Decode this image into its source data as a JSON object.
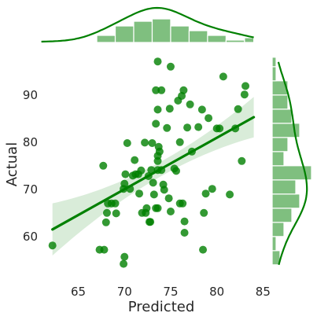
{
  "chart_data": {
    "type": "scatter",
    "title": "",
    "xlabel": "Predicted",
    "ylabel": "Actual",
    "xlim": [
      61.8,
      84.8
    ],
    "ylim": [
      51.8,
      98.8
    ],
    "xticks": [
      65,
      70,
      75,
      80,
      85
    ],
    "yticks": [
      60,
      70,
      80,
      90
    ],
    "grid": false,
    "color": "#008000",
    "points": [
      [
        62.2,
        58.1
      ],
      [
        67.3,
        57.2
      ],
      [
        67.8,
        57.2
      ],
      [
        69.9,
        54.2
      ],
      [
        70.0,
        55.7
      ],
      [
        68.0,
        63.0
      ],
      [
        68.1,
        65.0
      ],
      [
        68.2,
        67.0
      ],
      [
        68.6,
        67.0
      ],
      [
        69.0,
        67.0
      ],
      [
        69.1,
        64.9
      ],
      [
        67.7,
        75.0
      ],
      [
        69.9,
        70.1
      ],
      [
        70.0,
        71.2
      ],
      [
        70.1,
        73.2
      ],
      [
        70.3,
        79.8
      ],
      [
        70.6,
        70.1
      ],
      [
        70.9,
        72.9
      ],
      [
        71.1,
        76.2
      ],
      [
        71.2,
        73.2
      ],
      [
        71.5,
        73.2
      ],
      [
        71.6,
        69.1
      ],
      [
        71.8,
        74.0
      ],
      [
        71.9,
        65.0
      ],
      [
        72.3,
        65.0
      ],
      [
        72.4,
        66.0
      ],
      [
        72.7,
        63.1
      ],
      [
        72.6,
        72.8
      ],
      [
        72.8,
        63.1
      ],
      [
        72.9,
        74.1
      ],
      [
        72.2,
        79.9
      ],
      [
        73.0,
        79.8
      ],
      [
        73.1,
        71.4
      ],
      [
        73.2,
        68.9
      ],
      [
        73.4,
        66.0
      ],
      [
        73.6,
        66.0
      ],
      [
        73.6,
        74.1
      ],
      [
        73.6,
        76.0
      ],
      [
        73.6,
        77.1
      ],
      [
        73.7,
        79.0
      ],
      [
        73.8,
        78.0
      ],
      [
        73.4,
        83.9
      ],
      [
        73.6,
        86.9
      ],
      [
        73.4,
        91.0
      ],
      [
        73.6,
        97.1
      ],
      [
        74.0,
        91.0
      ],
      [
        74.0,
        74.1
      ],
      [
        74.2,
        71.0
      ],
      [
        74.3,
        69.9
      ],
      [
        74.6,
        83.0
      ],
      [
        74.9,
        87.1
      ],
      [
        75.0,
        96.0
      ],
      [
        74.8,
        68.1
      ],
      [
        75.0,
        65.3
      ],
      [
        75.4,
        74.4
      ],
      [
        75.6,
        73.9
      ],
      [
        75.8,
        88.8
      ],
      [
        76.0,
        67.0
      ],
      [
        76.0,
        80.0
      ],
      [
        76.2,
        89.8
      ],
      [
        76.3,
        67.0
      ],
      [
        76.4,
        91.0
      ],
      [
        76.5,
        63.2
      ],
      [
        76.5,
        60.8
      ],
      [
        76.8,
        83.1
      ],
      [
        77.1,
        88.0
      ],
      [
        77.3,
        78.0
      ],
      [
        78.0,
        83.2
      ],
      [
        78.4,
        86.9
      ],
      [
        78.6,
        65.0
      ],
      [
        78.5,
        57.2
      ],
      [
        78.8,
        69.1
      ],
      [
        79.1,
        85.1
      ],
      [
        79.5,
        70.1
      ],
      [
        80.0,
        82.9
      ],
      [
        80.3,
        82.9
      ],
      [
        80.7,
        93.9
      ],
      [
        81.4,
        68.9
      ],
      [
        82.0,
        82.9
      ],
      [
        82.3,
        87.0
      ],
      [
        82.7,
        76.0
      ],
      [
        83.0,
        90.1
      ],
      [
        83.1,
        91.9
      ]
    ],
    "regression": {
      "x": [
        62.2,
        84.0
      ],
      "y": [
        61.5,
        85.3
      ]
    },
    "marginal_x": {
      "bin_edges": [
        67.0,
        69.0,
        71.0,
        73.0,
        75.0,
        77.0,
        79.0,
        81.0,
        83.0,
        84.0
      ],
      "counts": [
        3,
        7,
        9,
        10,
        7,
        5,
        3,
        1,
        2
      ]
    },
    "marginal_y": {
      "bin_edges": [
        54,
        57,
        60,
        63,
        66,
        69,
        72,
        75,
        78,
        81,
        84,
        87,
        90,
        93,
        96,
        98
      ],
      "counts": [
        2,
        1,
        3,
        5,
        7,
        6,
        10,
        3,
        4,
        7,
        5,
        4,
        4,
        1,
        1
      ]
    }
  }
}
